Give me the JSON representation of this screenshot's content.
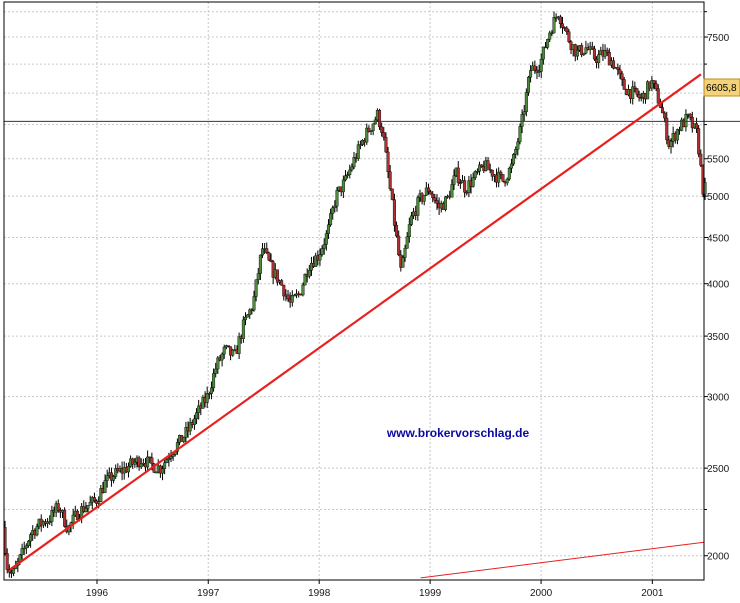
{
  "chart_data": {
    "type": "candlestick",
    "title": "",
    "xlabel": "",
    "ylabel": "",
    "y_scale": "log",
    "ylim": [
      1880,
      8200
    ],
    "xlim": [
      "1995-03-01",
      "2001-06-20"
    ],
    "grid": true,
    "x_ticks": [
      {
        "label": "1996",
        "date": "1996-01-01"
      },
      {
        "label": "1997",
        "date": "1997-01-01"
      },
      {
        "label": "1998",
        "date": "1998-01-01"
      },
      {
        "label": "1999",
        "date": "1999-01-01"
      },
      {
        "label": "2000",
        "date": "2000-01-01"
      },
      {
        "label": "2001",
        "date": "2001-01-01"
      }
    ],
    "y_ticks": [
      {
        "label": "7500",
        "value": 7500
      },
      {
        "label": "5500",
        "value": 5500
      },
      {
        "label": "5000",
        "value": 5000
      },
      {
        "label": "4500",
        "value": 4500
      },
      {
        "label": "4000",
        "value": 4000
      },
      {
        "label": "3500",
        "value": 3500
      },
      {
        "label": "3000",
        "value": 3000
      },
      {
        "label": "2500",
        "value": 2500
      },
      {
        "label": "2000",
        "value": 2000
      }
    ],
    "y_minor_ticks": [
      8000,
      7000,
      6500,
      6000,
      2250
    ],
    "price_anchors": [
      [
        "1995-03-01",
        2150
      ],
      [
        "1995-03-15",
        1950
      ],
      [
        "1995-04-01",
        1900
      ],
      [
        "1995-05-01",
        2000
      ],
      [
        "1995-06-01",
        2120
      ],
      [
        "1995-07-01",
        2170
      ],
      [
        "1995-08-01",
        2200
      ],
      [
        "1995-09-01",
        2270
      ],
      [
        "1995-10-01",
        2140
      ],
      [
        "1995-11-01",
        2230
      ],
      [
        "1995-12-01",
        2270
      ],
      [
        "1996-01-01",
        2300
      ],
      [
        "1996-02-01",
        2410
      ],
      [
        "1996-03-01",
        2460
      ],
      [
        "1996-04-01",
        2490
      ],
      [
        "1996-05-01",
        2530
      ],
      [
        "1996-06-01",
        2560
      ],
      [
        "1996-07-01",
        2520
      ],
      [
        "1996-08-01",
        2500
      ],
      [
        "1996-09-01",
        2600
      ],
      [
        "1996-10-01",
        2670
      ],
      [
        "1996-11-01",
        2760
      ],
      [
        "1996-12-01",
        2880
      ],
      [
        "1997-01-01",
        3000
      ],
      [
        "1997-02-01",
        3250
      ],
      [
        "1997-03-01",
        3380
      ],
      [
        "1997-04-01",
        3320
      ],
      [
        "1997-05-01",
        3600
      ],
      [
        "1997-06-01",
        3800
      ],
      [
        "1997-07-01",
        4380
      ],
      [
        "1997-08-01",
        4150
      ],
      [
        "1997-09-01",
        4000
      ],
      [
        "1997-10-01",
        3800
      ],
      [
        "1997-11-01",
        3900
      ],
      [
        "1997-12-01",
        4200
      ],
      [
        "1998-01-01",
        4300
      ],
      [
        "1998-02-01",
        4550
      ],
      [
        "1998-03-01",
        5000
      ],
      [
        "1998-04-01",
        5200
      ],
      [
        "1998-05-01",
        5500
      ],
      [
        "1998-06-01",
        5800
      ],
      [
        "1998-07-15",
        6150
      ],
      [
        "1998-08-01",
        5900
      ],
      [
        "1998-09-01",
        4900
      ],
      [
        "1998-10-01",
        4100
      ],
      [
        "1998-11-01",
        4700
      ],
      [
        "1998-12-01",
        4950
      ],
      [
        "1999-01-01",
        5100
      ],
      [
        "1999-02-01",
        4850
      ],
      [
        "1999-03-01",
        4950
      ],
      [
        "1999-04-01",
        5300
      ],
      [
        "1999-05-01",
        5100
      ],
      [
        "1999-06-01",
        5250
      ],
      [
        "1999-07-01",
        5400
      ],
      [
        "1999-08-01",
        5300
      ],
      [
        "1999-09-01",
        5200
      ],
      [
        "1999-10-01",
        5400
      ],
      [
        "1999-11-01",
        6000
      ],
      [
        "1999-12-01",
        6900
      ],
      [
        "2000-01-01",
        7000
      ],
      [
        "2000-02-01",
        7600
      ],
      [
        "2000-03-01",
        8000
      ],
      [
        "2000-04-01",
        7500
      ],
      [
        "2000-05-01",
        7200
      ],
      [
        "2000-06-01",
        7300
      ],
      [
        "2000-07-01",
        7100
      ],
      [
        "2000-08-01",
        7200
      ],
      [
        "2000-09-01",
        7000
      ],
      [
        "2000-10-01",
        6600
      ],
      [
        "2000-11-01",
        6500
      ],
      [
        "2000-12-01",
        6400
      ],
      [
        "2001-01-01",
        6700
      ],
      [
        "2001-02-01",
        6300
      ],
      [
        "2001-03-01",
        5700
      ],
      [
        "2001-04-01",
        5950
      ],
      [
        "2001-05-01",
        6100
      ],
      [
        "2001-06-01",
        5850
      ],
      [
        "2001-06-20",
        5100
      ]
    ],
    "trendlines": [
      {
        "from": [
          "1995-03-20",
          1930
        ],
        "to": [
          "2001-06-10",
          6820
        ],
        "color": "#e82020",
        "width": 2.2
      },
      {
        "from": [
          "1998-12-01",
          1890
        ],
        "to": [
          "2001-06-20",
          2070
        ],
        "color": "#e82020",
        "width": 1
      }
    ],
    "reference_line": {
      "value": 6050,
      "color": "#303060"
    },
    "current_value_label": "6605,8",
    "watermark": "www.brokervorschlag.de",
    "colors": {
      "bull_body": "#4a8a3a",
      "bear_body": "#b03030",
      "wick": "#000000",
      "grid": "#c8c8c8",
      "badge_fill": "#f4d27a",
      "badge_stroke": "#c08a20"
    }
  }
}
